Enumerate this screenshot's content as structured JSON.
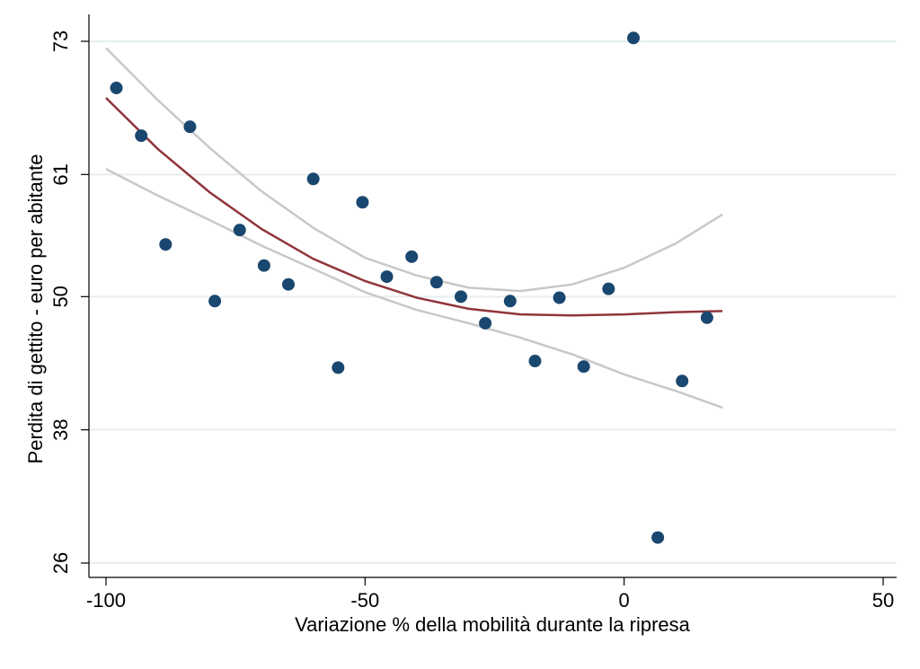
{
  "chart_data": {
    "type": "scatter",
    "title": "",
    "xlabel": "Variazione % della mobilità durante la ripresa",
    "ylabel": "Perdita di gettito - euro per abitante",
    "xlim": [
      -100,
      50
    ],
    "ylim": [
      26,
      73
    ],
    "x_ticks": [
      -100,
      -50,
      0,
      50
    ],
    "x_tick_labels": [
      "-100",
      "-50",
      "0",
      "50"
    ],
    "y_ticks": [
      26,
      38,
      50,
      61,
      73
    ],
    "y_tick_labels": [
      "26",
      "38",
      "50",
      "61",
      "73"
    ],
    "grid": true,
    "legend": "none",
    "colors": {
      "points": "#1a476f",
      "fit": "#90353b",
      "ci": "#c8c8c8",
      "grid": "#e6eef0"
    },
    "series": [
      {
        "type": "scatter",
        "points": [
          {
            "x": -98,
            "y": 68.8
          },
          {
            "x": -93.2,
            "y": 64.5
          },
          {
            "x": -88.5,
            "y": 54.7
          },
          {
            "x": -83.8,
            "y": 65.3
          },
          {
            "x": -79,
            "y": 49.6
          },
          {
            "x": -74.2,
            "y": 56
          },
          {
            "x": -69.5,
            "y": 52.8
          },
          {
            "x": -64.8,
            "y": 51.1
          },
          {
            "x": -60,
            "y": 60.6
          },
          {
            "x": -55.2,
            "y": 43.6
          },
          {
            "x": -50.5,
            "y": 58.5
          },
          {
            "x": -45.8,
            "y": 51.8
          },
          {
            "x": -41,
            "y": 53.6
          },
          {
            "x": -36.2,
            "y": 51.3
          },
          {
            "x": -31.5,
            "y": 50
          },
          {
            "x": -26.8,
            "y": 47.6
          },
          {
            "x": -22,
            "y": 49.6
          },
          {
            "x": -17.2,
            "y": 44.2
          },
          {
            "x": -12.5,
            "y": 49.9
          },
          {
            "x": -7.8,
            "y": 43.7
          },
          {
            "x": -3,
            "y": 50.7
          },
          {
            "x": 1.8,
            "y": 73.3
          },
          {
            "x": 6.5,
            "y": 28.3
          },
          {
            "x": 11.2,
            "y": 42.4
          },
          {
            "x": 16,
            "y": 48.1
          }
        ]
      },
      {
        "type": "line",
        "role": "quadratic-fit",
        "x": [
          -100,
          -90,
          -80,
          -70,
          -60,
          -50,
          -40,
          -30,
          -20,
          -10,
          0,
          10,
          19
        ],
        "y": [
          67.9,
          63.3,
          59.4,
          56.1,
          53.4,
          51.4,
          49.9,
          48.9,
          48.4,
          48.3,
          48.4,
          48.6,
          48.7
        ]
      },
      {
        "type": "line",
        "role": "ci-upper",
        "x": [
          -100,
          -90,
          -80,
          -70,
          -60,
          -50,
          -40,
          -30,
          -20,
          -10,
          0,
          10,
          19
        ],
        "y": [
          72.4,
          67.7,
          63.4,
          59.5,
          56.2,
          53.5,
          51.9,
          50.8,
          50.5,
          51.1,
          52.6,
          54.8,
          57.4
        ]
      },
      {
        "type": "line",
        "role": "ci-lower",
        "x": [
          -100,
          -90,
          -80,
          -70,
          -60,
          -50,
          -40,
          -30,
          -20,
          -10,
          0,
          10,
          19
        ],
        "y": [
          61.5,
          59.1,
          56.9,
          54.6,
          52.5,
          50.4,
          48.8,
          47.6,
          46.3,
          44.8,
          43,
          41.5,
          40
        ]
      }
    ]
  }
}
